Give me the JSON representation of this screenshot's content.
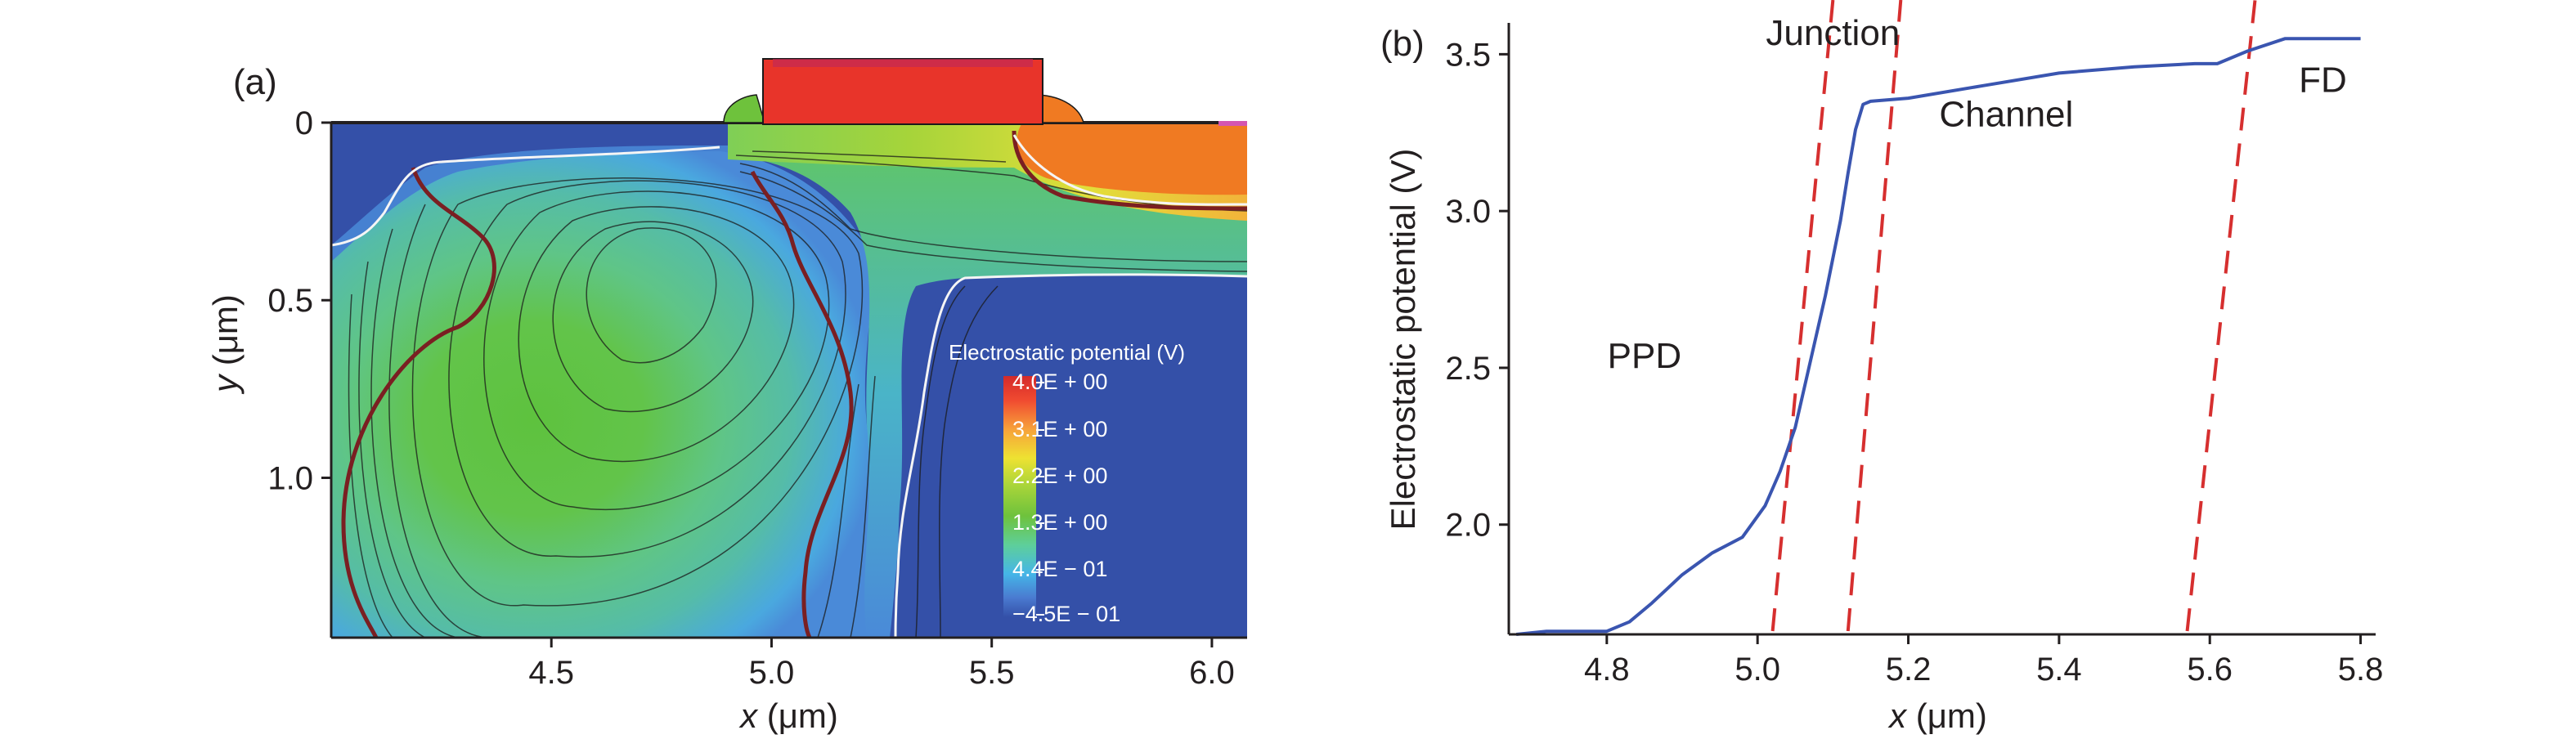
{
  "colors": {
    "background": "#3450a8",
    "axis": "#231f20",
    "curve": "#3a55b0",
    "dashed": "#d62f2f",
    "gate": "#e8342a",
    "fd": "#f07a22",
    "white_contour": "#f5f5f5",
    "junction_contour": "#7a1f22",
    "colorbar": [
      "#3450a8",
      "#4a7ad0",
      "#45b6e8",
      "#5ecf9a",
      "#6ec23c",
      "#a6d43a",
      "#eee232",
      "#f7a13a",
      "#e8342a",
      "#d42a2a"
    ]
  },
  "chart_data": [
    {
      "id": "a",
      "type": "heatmap",
      "panel_label": "(a)",
      "xlabel": "x (μm)",
      "ylabel": "y (μm)",
      "xlim": [
        4.0,
        6.08
      ],
      "ylim": [
        1.45,
        0.0
      ],
      "x_ticks": [
        4.5,
        5.0,
        5.5,
        6.0
      ],
      "x_tick_labels": [
        "4.5",
        "5.0",
        "5.5",
        "6.0"
      ],
      "y_ticks": [
        0,
        0.5,
        1.0
      ],
      "y_tick_labels": [
        "0",
        "0.5",
        "1.0"
      ],
      "colorbar": {
        "title": "Electrostatic potential (V)",
        "labels": [
          "4.0E + 00",
          "3.1E + 00",
          "2.2E + 00",
          "1.3E + 00",
          "4.4E − 01",
          "−4.5E − 01"
        ],
        "values": [
          4.0,
          3.1,
          2.2,
          1.3,
          0.44,
          -0.45
        ]
      }
    },
    {
      "id": "b",
      "type": "line",
      "panel_label": "(b)",
      "xlabel": "x (μm)",
      "ylabel": "Electrostatic potential (V)",
      "xlim": [
        4.67,
        5.82
      ],
      "ylim": [
        1.65,
        3.6
      ],
      "x_ticks": [
        4.8,
        5.0,
        5.2,
        5.4,
        5.6,
        5.8
      ],
      "x_tick_labels": [
        "4.8",
        "5.0",
        "5.2",
        "5.4",
        "5.6",
        "5.8"
      ],
      "y_ticks": [
        2.0,
        2.5,
        3.0,
        3.5
      ],
      "y_tick_labels": [
        "2.0",
        "2.5",
        "3.0",
        "3.5"
      ],
      "series": [
        {
          "name": "Electrostatic potential",
          "x": [
            4.68,
            4.72,
            4.76,
            4.8,
            4.83,
            4.86,
            4.9,
            4.94,
            4.98,
            5.01,
            5.03,
            5.05,
            5.07,
            5.09,
            5.11,
            5.12,
            5.13,
            5.14,
            5.15,
            5.2,
            5.3,
            5.4,
            5.5,
            5.58,
            5.61,
            5.65,
            5.7,
            5.75,
            5.8
          ],
          "y": [
            1.65,
            1.66,
            1.66,
            1.66,
            1.69,
            1.75,
            1.84,
            1.91,
            1.96,
            2.06,
            2.17,
            2.31,
            2.52,
            2.73,
            2.97,
            3.12,
            3.26,
            3.34,
            3.35,
            3.36,
            3.4,
            3.44,
            3.46,
            3.47,
            3.47,
            3.51,
            3.55,
            3.55,
            3.55
          ]
        }
      ],
      "dashed_lines": [
        {
          "x_bottom": 5.02,
          "x_top": 5.1
        },
        {
          "x_bottom": 5.12,
          "x_top": 5.19
        },
        {
          "x_bottom": 5.57,
          "x_top": 5.66
        }
      ],
      "annotations": [
        {
          "text": "Junction",
          "x": 5.1,
          "y": 3.53
        },
        {
          "text": "Channel",
          "x": 5.33,
          "y": 3.27
        },
        {
          "text": "FD",
          "x": 5.75,
          "y": 3.38
        },
        {
          "text": "PPD",
          "x": 4.85,
          "y": 2.5
        }
      ]
    }
  ]
}
